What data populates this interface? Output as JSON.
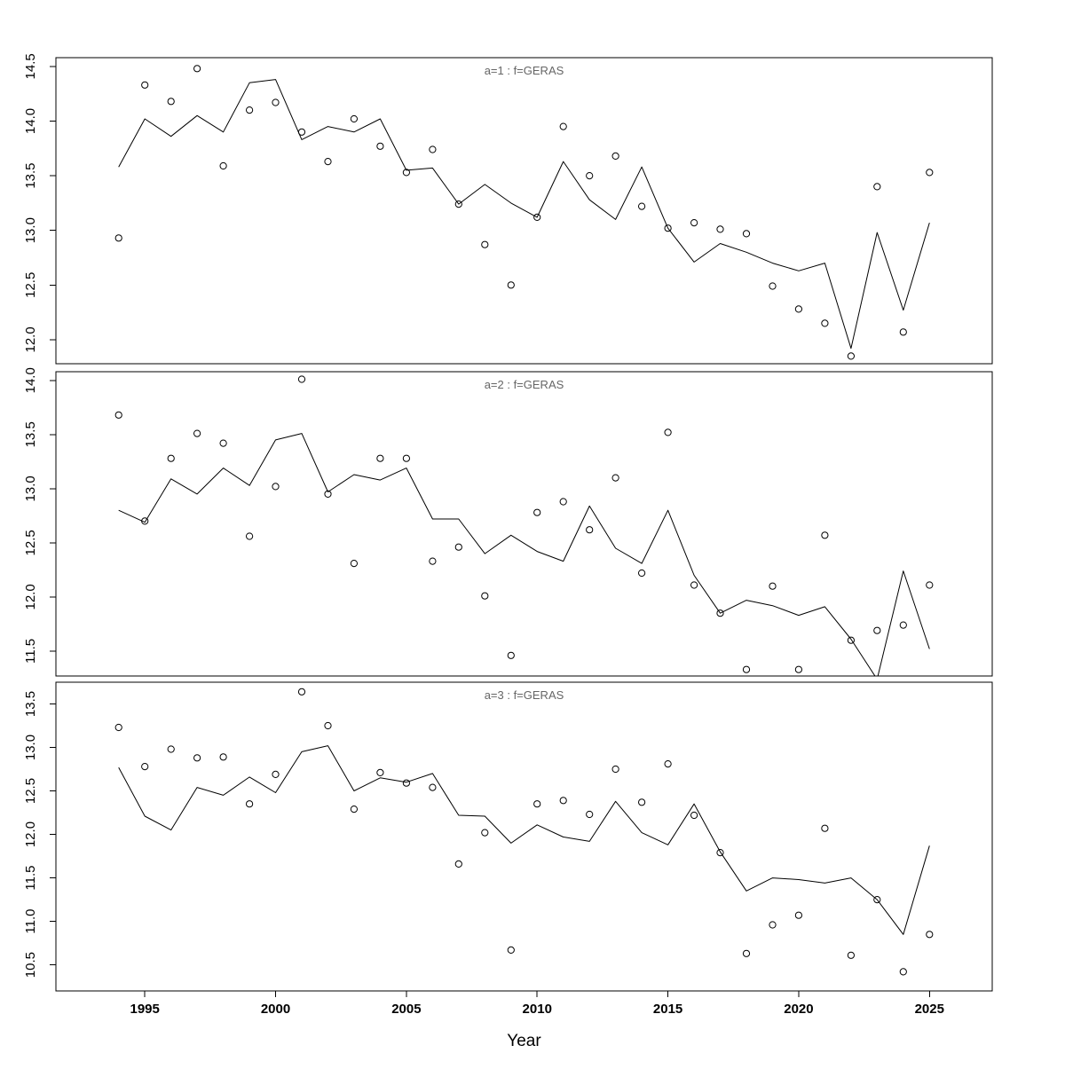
{
  "figure": {
    "xlabel": "Year",
    "x_ticks": [
      1995,
      2000,
      2005,
      2010,
      2015,
      2020,
      2025
    ],
    "x_range": [
      1991.6,
      2027.4
    ],
    "background": "#ffffff",
    "colors": {
      "frame": "#000000",
      "points": "#000000",
      "line": "#000000",
      "title_text": "#666666",
      "axis_text": "#000000"
    }
  },
  "chart_data": [
    {
      "type": "scatter",
      "title": "a=1 : f=GERAS",
      "xlabel": "Year",
      "ylim": [
        11.78,
        14.58
      ],
      "y_ticks": [
        12.0,
        12.5,
        13.0,
        13.5,
        14.0,
        14.5
      ],
      "x": [
        1994,
        1995,
        1996,
        1997,
        1998,
        1999,
        2000,
        2001,
        2002,
        2003,
        2004,
        2005,
        2006,
        2007,
        2008,
        2009,
        2010,
        2011,
        2012,
        2013,
        2014,
        2015,
        2016,
        2017,
        2018,
        2019,
        2020,
        2021,
        2022,
        2023,
        2024,
        2025
      ],
      "series": [
        {
          "name": "observed",
          "style": "points",
          "values": [
            12.93,
            14.33,
            14.18,
            14.48,
            13.59,
            14.1,
            14.17,
            13.9,
            13.63,
            14.02,
            13.77,
            13.53,
            13.74,
            13.24,
            12.87,
            12.5,
            13.12,
            13.95,
            13.5,
            13.68,
            13.22,
            13.02,
            13.07,
            13.01,
            12.97,
            12.49,
            12.28,
            12.15,
            11.85,
            13.4,
            12.07,
            13.53
          ]
        },
        {
          "name": "fitted",
          "style": "line",
          "values": [
            13.58,
            14.02,
            13.86,
            14.05,
            13.9,
            14.35,
            14.38,
            13.83,
            13.95,
            13.9,
            14.02,
            13.55,
            13.57,
            13.24,
            13.42,
            13.25,
            13.12,
            13.63,
            13.28,
            13.1,
            13.58,
            13.02,
            12.71,
            12.88,
            12.8,
            12.7,
            12.63,
            12.7,
            11.92,
            12.98,
            12.27,
            13.07
          ]
        }
      ]
    },
    {
      "type": "scatter",
      "title": "a=2 : f=GERAS",
      "xlabel": "Year",
      "ylim": [
        11.27,
        14.08
      ],
      "y_ticks": [
        11.5,
        12.0,
        12.5,
        13.0,
        13.5,
        14.0
      ],
      "x": [
        1994,
        1995,
        1996,
        1997,
        1998,
        1999,
        2000,
        2001,
        2002,
        2003,
        2004,
        2005,
        2006,
        2007,
        2008,
        2009,
        2010,
        2011,
        2012,
        2013,
        2014,
        2015,
        2016,
        2017,
        2018,
        2019,
        2020,
        2021,
        2022,
        2023,
        2024,
        2025
      ],
      "series": [
        {
          "name": "observed",
          "style": "points",
          "values": [
            13.68,
            12.7,
            13.28,
            13.51,
            13.42,
            12.56,
            13.02,
            14.01,
            12.95,
            12.31,
            13.28,
            13.28,
            12.33,
            12.46,
            12.01,
            11.46,
            12.78,
            12.88,
            12.62,
            13.1,
            12.22,
            13.52,
            12.11,
            11.85,
            11.33,
            12.1,
            11.33,
            12.57,
            11.6,
            11.69,
            11.74,
            12.11
          ]
        },
        {
          "name": "fitted",
          "style": "line",
          "values": [
            12.8,
            12.69,
            13.09,
            12.95,
            13.19,
            13.03,
            13.45,
            13.51,
            12.97,
            13.13,
            13.08,
            13.19,
            12.72,
            12.72,
            12.4,
            12.57,
            12.42,
            12.33,
            12.84,
            12.45,
            12.31,
            12.8,
            12.2,
            11.85,
            11.97,
            11.92,
            11.83,
            11.91,
            11.61,
            11.24,
            12.24,
            11.52
          ]
        }
      ]
    },
    {
      "type": "scatter",
      "title": "a=3 : f=GERAS",
      "xlabel": "Year",
      "ylim": [
        10.2,
        13.75
      ],
      "y_ticks": [
        10.5,
        11.0,
        11.5,
        12.0,
        12.5,
        13.0,
        13.5
      ],
      "x": [
        1994,
        1995,
        1996,
        1997,
        1998,
        1999,
        2000,
        2001,
        2002,
        2003,
        2004,
        2005,
        2006,
        2007,
        2008,
        2009,
        2010,
        2011,
        2012,
        2013,
        2014,
        2015,
        2016,
        2017,
        2018,
        2019,
        2020,
        2021,
        2022,
        2023,
        2024,
        2025
      ],
      "series": [
        {
          "name": "observed",
          "style": "points",
          "values": [
            13.23,
            12.78,
            12.98,
            12.88,
            12.89,
            12.35,
            12.69,
            13.64,
            13.25,
            12.29,
            12.71,
            12.59,
            12.54,
            11.66,
            12.02,
            10.67,
            12.35,
            12.39,
            12.23,
            12.75,
            12.37,
            12.81,
            12.22,
            11.79,
            10.63,
            10.96,
            11.07,
            12.07,
            10.61,
            11.25,
            10.42,
            10.85
          ]
        },
        {
          "name": "fitted",
          "style": "line",
          "values": [
            12.77,
            12.21,
            12.05,
            12.54,
            12.45,
            12.66,
            12.48,
            12.95,
            13.02,
            12.5,
            12.65,
            12.6,
            12.7,
            12.22,
            12.21,
            11.9,
            12.11,
            11.97,
            11.92,
            12.38,
            12.02,
            11.88,
            12.35,
            11.8,
            11.35,
            11.5,
            11.48,
            11.44,
            11.5,
            11.25,
            10.85,
            11.87
          ]
        }
      ]
    }
  ]
}
